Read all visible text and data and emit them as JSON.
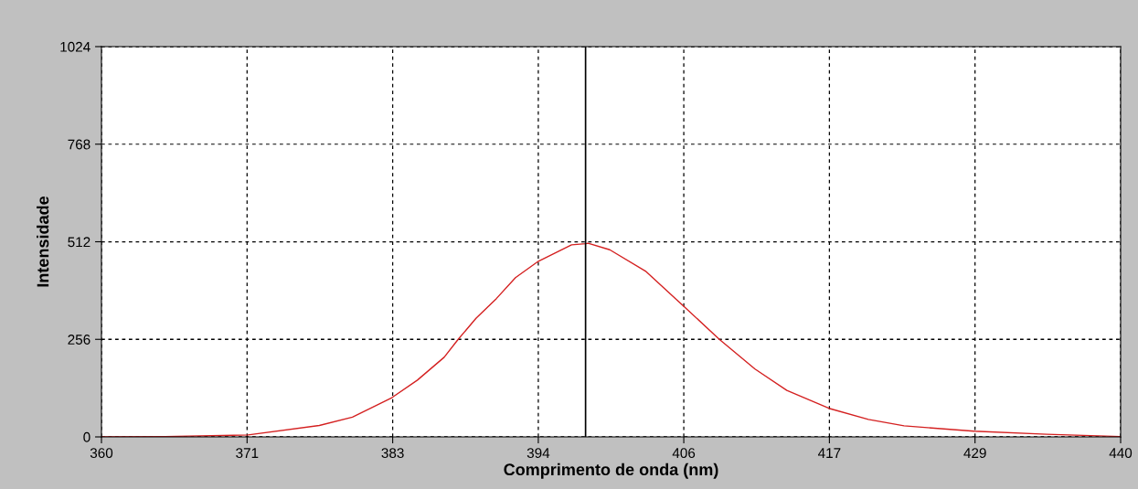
{
  "chart_data": {
    "type": "line",
    "xlabel": "Comprimento de onda (nm)",
    "ylabel": "Intensidade",
    "series": [
      {
        "color": "#d42020",
        "x": [
          360,
          365,
          371.5,
          377.1,
          379.7,
          382.8,
          384.8,
          386.9,
          388.0,
          389.4,
          391.0,
          392.5,
          394.3,
          396.9,
          398.0,
          398.2,
          399.9,
          402.7,
          405.7,
          408.5,
          411.3,
          413.8,
          417.1,
          420.2,
          423.0,
          428.5,
          434.2,
          440
        ],
        "values": [
          0,
          1,
          5,
          30,
          52,
          103,
          149,
          209,
          256,
          311,
          363,
          418,
          461,
          504,
          507,
          508,
          491,
          435,
          343,
          256,
          178,
          122,
          75,
          46,
          29,
          15,
          7,
          1
        ]
      }
    ],
    "xlim": [
      360,
      440
    ],
    "xticks": [
      360,
      {
        "value": 371.43,
        "label": "371"
      },
      {
        "value": 382.86,
        "label": "383"
      },
      {
        "value": 394.29,
        "label": "394"
      },
      {
        "value": 405.71,
        "label": "406"
      },
      {
        "value": 417.14,
        "label": "417"
      },
      {
        "value": 428.57,
        "label": "429"
      },
      440
    ],
    "ylim": [
      0,
      1024
    ],
    "yticks": [
      0,
      256,
      512,
      768,
      1024
    ],
    "ref_lines": [
      {
        "axis": "x",
        "value": 398.0,
        "color": "#000000"
      }
    ],
    "grid": true,
    "legend": false,
    "marker": "none",
    "line_style": "solid"
  }
}
